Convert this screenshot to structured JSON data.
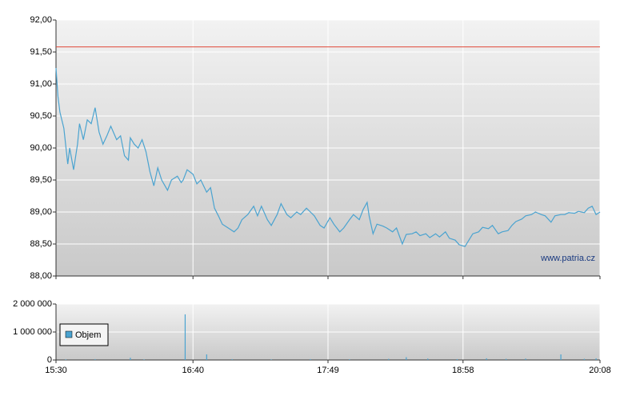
{
  "chart_data": [
    {
      "type": "line",
      "xlim": [
        930,
        1208
      ],
      "ylim": [
        88,
        92
      ],
      "yticks": [
        {
          "value": 88,
          "label": "88,00"
        },
        {
          "value": 88.5,
          "label": "88,50"
        },
        {
          "value": 89,
          "label": "89,00"
        },
        {
          "value": 89.5,
          "label": "89,50"
        },
        {
          "value": 90,
          "label": "90,00"
        },
        {
          "value": 90.5,
          "label": "90,50"
        },
        {
          "value": 91,
          "label": "91,00"
        },
        {
          "value": 91.5,
          "label": "91,50"
        },
        {
          "value": 92,
          "label": "92,00"
        }
      ],
      "grid": true,
      "reference_line": {
        "value": 91.58,
        "color": "#e04a3a"
      },
      "annotation": "www.patria.cz",
      "x": [
        930,
        931,
        932,
        934,
        936,
        937,
        939,
        941,
        942,
        944,
        946,
        948,
        950,
        952,
        954,
        956,
        958,
        961,
        963,
        965,
        967,
        968,
        970,
        972,
        974,
        976,
        978,
        980,
        982,
        984,
        987,
        989,
        992,
        994,
        995,
        997,
        1000,
        1002,
        1004,
        1007,
        1009,
        1011,
        1013,
        1015,
        1018,
        1021,
        1023,
        1025,
        1028,
        1031,
        1033,
        1035,
        1038,
        1040,
        1043,
        1045,
        1048,
        1050,
        1053,
        1055,
        1058,
        1060,
        1062,
        1065,
        1067,
        1070,
        1072,
        1075,
        1077,
        1080,
        1082,
        1085,
        1087,
        1089,
        1090,
        1092,
        1094,
        1097,
        1099,
        1102,
        1104,
        1107,
        1109,
        1112,
        1114,
        1116,
        1119,
        1121,
        1124,
        1126,
        1129,
        1131,
        1134,
        1136,
        1139,
        1141,
        1143,
        1146,
        1148,
        1151,
        1153,
        1156,
        1158,
        1161,
        1163,
        1165,
        1168,
        1170,
        1173,
        1175,
        1178,
        1180,
        1183,
        1185,
        1188,
        1190,
        1192,
        1195,
        1197,
        1200,
        1202,
        1204,
        1206,
        1208
      ],
      "series": [
        {
          "color": "#4aa3d0",
          "values": [
            91.25,
            90.81,
            90.56,
            90.31,
            89.75,
            90.0,
            89.66,
            90.06,
            90.38,
            90.13,
            90.44,
            90.38,
            90.63,
            90.25,
            90.06,
            90.19,
            90.34,
            90.13,
            90.19,
            89.88,
            89.81,
            90.16,
            90.06,
            90.0,
            90.13,
            89.94,
            89.63,
            89.41,
            89.69,
            89.5,
            89.34,
            89.5,
            89.56,
            89.46,
            89.5,
            89.66,
            89.59,
            89.44,
            89.5,
            89.31,
            89.38,
            89.06,
            88.94,
            88.81,
            88.75,
            88.69,
            88.75,
            88.88,
            88.96,
            89.09,
            88.94,
            89.09,
            88.88,
            88.79,
            88.96,
            89.13,
            88.96,
            88.91,
            89.0,
            88.96,
            89.06,
            89.0,
            88.94,
            88.79,
            88.75,
            88.91,
            88.81,
            88.69,
            88.75,
            88.88,
            88.96,
            88.88,
            89.04,
            89.15,
            88.94,
            88.66,
            88.81,
            88.78,
            88.75,
            88.69,
            88.75,
            88.5,
            88.65,
            88.66,
            88.69,
            88.63,
            88.66,
            88.6,
            88.66,
            88.61,
            88.69,
            88.59,
            88.56,
            88.49,
            88.46,
            88.56,
            88.66,
            88.69,
            88.76,
            88.74,
            88.79,
            88.66,
            88.69,
            88.71,
            88.79,
            88.85,
            88.89,
            88.94,
            88.96,
            89.0,
            88.96,
            88.94,
            88.84,
            88.94,
            88.96,
            88.96,
            88.99,
            88.98,
            89.01,
            88.99,
            89.06,
            89.09,
            88.96,
            89.0
          ]
        }
      ]
    },
    {
      "type": "bar",
      "xlim": [
        930,
        1208
      ],
      "xticks": [
        {
          "value": 930,
          "label": "15:30"
        },
        {
          "value": 1000,
          "label": "16:40"
        },
        {
          "value": 1069,
          "label": "17:49"
        },
        {
          "value": 1138,
          "label": "18:58"
        },
        {
          "value": 1208,
          "label": "20:08"
        }
      ],
      "ylim": [
        0,
        2000000
      ],
      "yticks": [
        0,
        {
          "value": 1000000,
          "label": "1 000 000"
        },
        {
          "value": 2000000,
          "label": "2 000 000"
        }
      ],
      "grid": true,
      "legend": "left",
      "x": [
        935,
        950,
        968,
        975,
        996,
        1007,
        1020,
        1040,
        1060,
        1080,
        1100,
        1109,
        1120,
        1135,
        1150,
        1160,
        1170,
        1188,
        1200,
        1206
      ],
      "series": [
        {
          "name": "Objem",
          "color": "#4aa3d0",
          "values": [
            20000,
            30000,
            80000,
            20000,
            1630000,
            200000,
            30000,
            20000,
            30000,
            25000,
            40000,
            100000,
            50000,
            30000,
            60000,
            40000,
            50000,
            200000,
            40000,
            60000
          ]
        }
      ]
    }
  ]
}
